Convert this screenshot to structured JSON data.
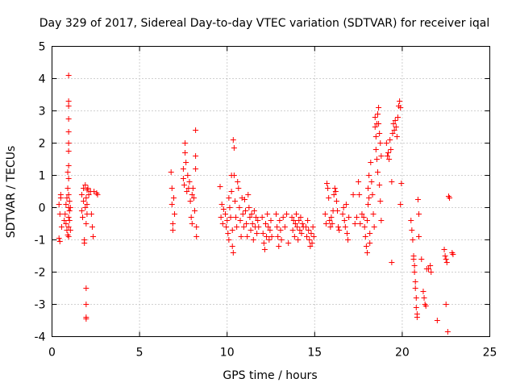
{
  "chart_data": {
    "type": "scatter",
    "title": "Day 329 of 2017, Sidereal Day-to-day VTEC variation (SDTVAR) for receiver iqal",
    "xlabel": "GPS time / hours",
    "ylabel": "SDTVAR / TECUs",
    "xlim": [
      0,
      25
    ],
    "ylim": [
      -4,
      5
    ],
    "xticks": [
      0,
      5,
      10,
      15,
      20,
      25
    ],
    "yticks": [
      -4,
      -3,
      -2,
      -1,
      0,
      1,
      2,
      3,
      4,
      5
    ],
    "xtick_labels": [
      "0",
      "5",
      "10",
      "15",
      "20",
      "25"
    ],
    "ytick_labels": [
      "-4",
      "-3",
      "-2",
      "-1",
      "0",
      "1",
      "2",
      "3",
      "4",
      "5"
    ],
    "grid": true,
    "marker": "+",
    "color": "#ff0000",
    "series": [
      {
        "name": "SDTVAR",
        "points": [
          [
            0.4,
            0.1
          ],
          [
            0.45,
            -0.2
          ],
          [
            0.4,
            -0.95
          ],
          [
            0.45,
            -1.05
          ],
          [
            0.5,
            0.3
          ],
          [
            0.5,
            0.4
          ],
          [
            0.55,
            -0.6
          ],
          [
            0.7,
            -0.4
          ],
          [
            0.75,
            -0.2
          ],
          [
            0.8,
            -0.5
          ],
          [
            0.8,
            0.1
          ],
          [
            0.85,
            -0.7
          ],
          [
            0.85,
            0.3
          ],
          [
            0.9,
            -0.85
          ],
          [
            0.9,
            0.6
          ],
          [
            0.9,
            1.1
          ],
          [
            0.95,
            4.1
          ],
          [
            0.95,
            3.3
          ],
          [
            0.95,
            3.15
          ],
          [
            0.95,
            2.75
          ],
          [
            0.95,
            2.35
          ],
          [
            0.95,
            2.0
          ],
          [
            0.95,
            1.75
          ],
          [
            0.95,
            1.3
          ],
          [
            0.95,
            0.9
          ],
          [
            0.95,
            0.4
          ],
          [
            0.95,
            0.0
          ],
          [
            0.95,
            -0.3
          ],
          [
            0.95,
            -0.6
          ],
          [
            0.95,
            -0.9
          ],
          [
            1.0,
            0.2
          ],
          [
            1.0,
            -0.1
          ],
          [
            1.0,
            -0.4
          ],
          [
            1.05,
            0.0
          ],
          [
            1.05,
            -0.7
          ],
          [
            1.7,
            -0.1
          ],
          [
            1.7,
            0.4
          ],
          [
            1.75,
            -0.3
          ],
          [
            1.8,
            0.6
          ],
          [
            1.8,
            0.2
          ],
          [
            1.85,
            -1.0
          ],
          [
            1.85,
            -1.1
          ],
          [
            1.9,
            0.7
          ],
          [
            1.9,
            0.0
          ],
          [
            1.95,
            0.3
          ],
          [
            1.95,
            -0.5
          ],
          [
            1.95,
            -2.5
          ],
          [
            1.95,
            -3.0
          ],
          [
            1.95,
            -3.4
          ],
          [
            1.95,
            -3.45
          ],
          [
            2.0,
            0.55
          ],
          [
            2.0,
            0.1
          ],
          [
            2.0,
            -0.2
          ],
          [
            2.05,
            0.6
          ],
          [
            2.1,
            0.4
          ],
          [
            2.2,
            0.5
          ],
          [
            2.25,
            -0.2
          ],
          [
            2.3,
            -0.6
          ],
          [
            2.35,
            -0.9
          ],
          [
            2.4,
            0.5
          ],
          [
            2.55,
            0.45
          ],
          [
            2.6,
            0.4
          ],
          [
            6.8,
            1.1
          ],
          [
            6.85,
            0.6
          ],
          [
            6.85,
            0.1
          ],
          [
            6.9,
            -0.5
          ],
          [
            6.9,
            -0.7
          ],
          [
            6.95,
            0.3
          ],
          [
            7.0,
            -0.2
          ],
          [
            7.5,
            0.9
          ],
          [
            7.5,
            1.2
          ],
          [
            7.55,
            0.7
          ],
          [
            7.6,
            2.0
          ],
          [
            7.6,
            1.7
          ],
          [
            7.65,
            1.4
          ],
          [
            7.7,
            0.5
          ],
          [
            7.75,
            1.0
          ],
          [
            7.8,
            0.6
          ],
          [
            7.85,
            0.8
          ],
          [
            7.9,
            0.2
          ],
          [
            7.95,
            -0.3
          ],
          [
            8.0,
            -0.5
          ],
          [
            8.0,
            0.4
          ],
          [
            8.05,
            0.6
          ],
          [
            8.1,
            0.3
          ],
          [
            8.15,
            -0.1
          ],
          [
            8.2,
            2.4
          ],
          [
            8.2,
            1.6
          ],
          [
            8.2,
            1.2
          ],
          [
            8.25,
            -0.6
          ],
          [
            8.25,
            -0.9
          ],
          [
            9.6,
            0.65
          ],
          [
            9.65,
            -0.3
          ],
          [
            9.7,
            0.1
          ],
          [
            9.75,
            -0.5
          ],
          [
            9.8,
            -0.05
          ],
          [
            9.9,
            -0.2
          ],
          [
            9.95,
            -0.6
          ],
          [
            10.0,
            -0.4
          ],
          [
            10.05,
            -0.8
          ],
          [
            10.1,
            -1.0
          ],
          [
            10.1,
            0.3
          ],
          [
            10.15,
            0.0
          ],
          [
            10.2,
            -0.3
          ],
          [
            10.25,
            1.0
          ],
          [
            10.25,
            0.5
          ],
          [
            10.3,
            -0.7
          ],
          [
            10.3,
            -1.2
          ],
          [
            10.35,
            -1.4
          ],
          [
            10.35,
            2.1
          ],
          [
            10.4,
            1.85
          ],
          [
            10.4,
            1.0
          ],
          [
            10.45,
            0.2
          ],
          [
            10.5,
            -0.3
          ],
          [
            10.55,
            -0.6
          ],
          [
            10.6,
            0.8
          ],
          [
            10.65,
            0.6
          ],
          [
            10.7,
            0.0
          ],
          [
            10.75,
            -0.4
          ],
          [
            10.8,
            -0.9
          ],
          [
            10.85,
            0.3
          ],
          [
            10.9,
            -0.2
          ],
          [
            10.95,
            -0.6
          ],
          [
            11.0,
            0.25
          ],
          [
            11.05,
            -0.1
          ],
          [
            11.1,
            -0.5
          ],
          [
            11.15,
            -0.9
          ],
          [
            11.2,
            0.4
          ],
          [
            11.25,
            0.0
          ],
          [
            11.3,
            -0.3
          ],
          [
            11.35,
            -0.7
          ],
          [
            11.4,
            -0.2
          ],
          [
            11.45,
            -0.5
          ],
          [
            11.5,
            -1.0
          ],
          [
            11.55,
            -0.1
          ],
          [
            11.6,
            -0.6
          ],
          [
            11.65,
            -0.3
          ],
          [
            11.7,
            -0.8
          ],
          [
            11.75,
            -0.4
          ],
          [
            11.8,
            -0.6
          ],
          [
            12.0,
            -0.3
          ],
          [
            12.05,
            -0.8
          ],
          [
            12.1,
            -1.1
          ],
          [
            12.15,
            -1.3
          ],
          [
            12.2,
            -0.5
          ],
          [
            12.25,
            -0.9
          ],
          [
            12.3,
            -0.2
          ],
          [
            12.35,
            -0.6
          ],
          [
            12.4,
            -1.0
          ],
          [
            12.45,
            -0.7
          ],
          [
            12.5,
            -0.4
          ],
          [
            12.55,
            -0.9
          ],
          [
            12.8,
            -0.2
          ],
          [
            12.85,
            -0.6
          ],
          [
            12.9,
            -0.9
          ],
          [
            12.95,
            -1.2
          ],
          [
            13.0,
            -0.4
          ],
          [
            13.05,
            -0.7
          ],
          [
            13.1,
            -1.0
          ],
          [
            13.2,
            -0.3
          ],
          [
            13.3,
            -0.6
          ],
          [
            13.4,
            -0.2
          ],
          [
            13.5,
            -1.1
          ],
          [
            13.7,
            -0.3
          ],
          [
            13.75,
            -0.7
          ],
          [
            13.8,
            -0.4
          ],
          [
            13.85,
            -0.9
          ],
          [
            13.9,
            -0.5
          ],
          [
            13.95,
            -0.2
          ],
          [
            14.0,
            -0.6
          ],
          [
            14.05,
            -1.0
          ],
          [
            14.1,
            -0.4
          ],
          [
            14.15,
            -0.7
          ],
          [
            14.2,
            -0.3
          ],
          [
            14.25,
            -0.8
          ],
          [
            14.3,
            -0.5
          ],
          [
            14.35,
            -0.6
          ],
          [
            14.5,
            -0.6
          ],
          [
            14.55,
            -0.9
          ],
          [
            14.6,
            -0.4
          ],
          [
            14.65,
            -0.7
          ],
          [
            14.7,
            -1.0
          ],
          [
            14.75,
            -1.2
          ],
          [
            14.8,
            -0.8
          ],
          [
            14.85,
            -1.1
          ],
          [
            14.9,
            -0.6
          ],
          [
            14.95,
            -0.9
          ],
          [
            15.6,
            -0.2
          ],
          [
            15.65,
            -0.5
          ],
          [
            15.7,
            0.75
          ],
          [
            15.75,
            0.6
          ],
          [
            15.8,
            0.3
          ],
          [
            15.85,
            -0.4
          ],
          [
            15.9,
            -0.6
          ],
          [
            15.95,
            -0.3
          ],
          [
            16.0,
            -0.5
          ],
          [
            16.05,
            -0.1
          ],
          [
            16.1,
            0.4
          ],
          [
            16.15,
            0.6
          ],
          [
            16.2,
            0.5
          ],
          [
            16.25,
            0.2
          ],
          [
            16.3,
            -0.1
          ],
          [
            16.35,
            -0.6
          ],
          [
            16.4,
            -0.7
          ],
          [
            16.6,
            -0.2
          ],
          [
            16.65,
            0.0
          ],
          [
            16.7,
            -0.4
          ],
          [
            16.75,
            -0.6
          ],
          [
            16.8,
            0.1
          ],
          [
            16.85,
            -0.8
          ],
          [
            16.9,
            -1.0
          ],
          [
            16.95,
            -0.3
          ],
          [
            17.2,
            0.4
          ],
          [
            17.3,
            -0.5
          ],
          [
            17.4,
            -0.3
          ],
          [
            17.5,
            0.8
          ],
          [
            17.55,
            0.4
          ],
          [
            17.6,
            -0.5
          ],
          [
            17.7,
            -0.2
          ],
          [
            17.8,
            -0.3
          ],
          [
            17.85,
            -0.6
          ],
          [
            17.9,
            -0.9
          ],
          [
            17.95,
            -1.2
          ],
          [
            18.0,
            -1.4
          ],
          [
            18.0,
            -0.4
          ],
          [
            18.05,
            0.1
          ],
          [
            18.05,
            0.6
          ],
          [
            18.1,
            1.0
          ],
          [
            18.1,
            0.3
          ],
          [
            18.15,
            -0.8
          ],
          [
            18.15,
            -1.1
          ],
          [
            18.2,
            1.4
          ],
          [
            18.25,
            0.8
          ],
          [
            18.3,
            0.4
          ],
          [
            18.35,
            -0.2
          ],
          [
            18.4,
            -0.6
          ],
          [
            18.45,
            2.8
          ],
          [
            18.45,
            2.5
          ],
          [
            18.5,
            2.2
          ],
          [
            18.5,
            1.8
          ],
          [
            18.55,
            2.6
          ],
          [
            18.55,
            1.5
          ],
          [
            18.6,
            2.9
          ],
          [
            18.6,
            1.1
          ],
          [
            18.65,
            3.1
          ],
          [
            18.65,
            2.6
          ],
          [
            18.7,
            2.3
          ],
          [
            18.7,
            0.7
          ],
          [
            18.75,
            2.0
          ],
          [
            18.75,
            0.2
          ],
          [
            18.8,
            1.6
          ],
          [
            18.8,
            -0.4
          ],
          [
            19.1,
            2.0
          ],
          [
            19.15,
            1.6
          ],
          [
            19.2,
            1.7
          ],
          [
            19.25,
            1.5
          ],
          [
            19.3,
            2.1
          ],
          [
            19.35,
            1.8
          ],
          [
            19.4,
            0.8
          ],
          [
            19.4,
            -1.7
          ],
          [
            19.45,
            2.3
          ],
          [
            19.5,
            2.6
          ],
          [
            19.55,
            2.4
          ],
          [
            19.6,
            2.7
          ],
          [
            19.65,
            2.5
          ],
          [
            19.7,
            2.2
          ],
          [
            19.75,
            2.8
          ],
          [
            19.8,
            3.15
          ],
          [
            19.85,
            3.3
          ],
          [
            19.9,
            3.1
          ],
          [
            19.95,
            0.75
          ],
          [
            19.9,
            0.1
          ],
          [
            20.5,
            -0.4
          ],
          [
            20.55,
            -0.7
          ],
          [
            20.6,
            -1.0
          ],
          [
            20.65,
            -1.5
          ],
          [
            20.65,
            -1.6
          ],
          [
            20.7,
            -1.8
          ],
          [
            20.7,
            -2.0
          ],
          [
            20.75,
            -2.3
          ],
          [
            20.75,
            -2.5
          ],
          [
            20.8,
            -2.8
          ],
          [
            20.8,
            -3.1
          ],
          [
            20.85,
            -3.3
          ],
          [
            20.85,
            -3.4
          ],
          [
            20.9,
            0.25
          ],
          [
            20.95,
            -0.2
          ],
          [
            20.95,
            -0.9
          ],
          [
            21.1,
            -1.6
          ],
          [
            21.2,
            -2.6
          ],
          [
            21.25,
            -2.8
          ],
          [
            21.3,
            -3.0
          ],
          [
            21.35,
            -3.05
          ],
          [
            21.4,
            -1.9
          ],
          [
            21.5,
            -1.9
          ],
          [
            21.6,
            -1.8
          ],
          [
            21.65,
            -2.0
          ],
          [
            22.0,
            -3.5
          ],
          [
            22.4,
            -1.3
          ],
          [
            22.45,
            -1.5
          ],
          [
            22.5,
            -1.6
          ],
          [
            22.55,
            -1.7
          ],
          [
            22.5,
            -3.0
          ],
          [
            22.6,
            -3.85
          ],
          [
            22.65,
            0.35
          ],
          [
            22.7,
            0.3
          ],
          [
            22.85,
            -1.4
          ],
          [
            22.9,
            -1.45
          ]
        ]
      }
    ]
  }
}
